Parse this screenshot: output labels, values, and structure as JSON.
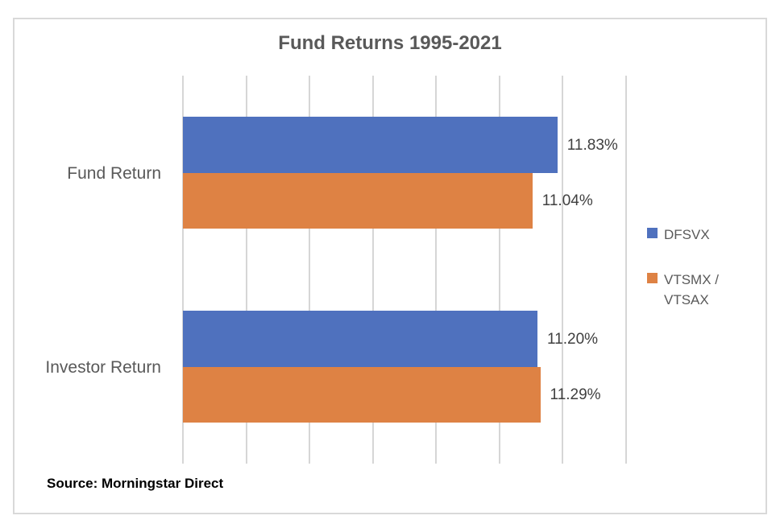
{
  "chart_data": {
    "type": "bar",
    "orientation": "horizontal",
    "title": "Fund Returns 1995-2021",
    "categories": [
      "Fund Return",
      "Investor Return"
    ],
    "series": [
      {
        "name": "DFSVX",
        "color": "#4F71BE",
        "values": [
          11.83,
          11.2
        ],
        "labels": [
          "11.83%",
          "11.20%"
        ]
      },
      {
        "name": "VTSMX / VTSAX",
        "color": "#DE8244",
        "values": [
          11.04,
          11.29
        ],
        "labels": [
          "11.04%",
          "11.29%"
        ]
      }
    ],
    "xlabel": "",
    "ylabel": "",
    "xlim": [
      0,
      14
    ],
    "gridline_step": 2,
    "grid": true,
    "legend_position": "right",
    "source": "Source: Morningstar Direct"
  },
  "colors": {
    "frame_border": "#D9D9D9",
    "gridline": "#D6D6D6",
    "title_text": "#595959",
    "category_text": "#595959",
    "data_label_text": "#3F3F3F",
    "legend_text": "#595959",
    "source_text": "#000000"
  }
}
